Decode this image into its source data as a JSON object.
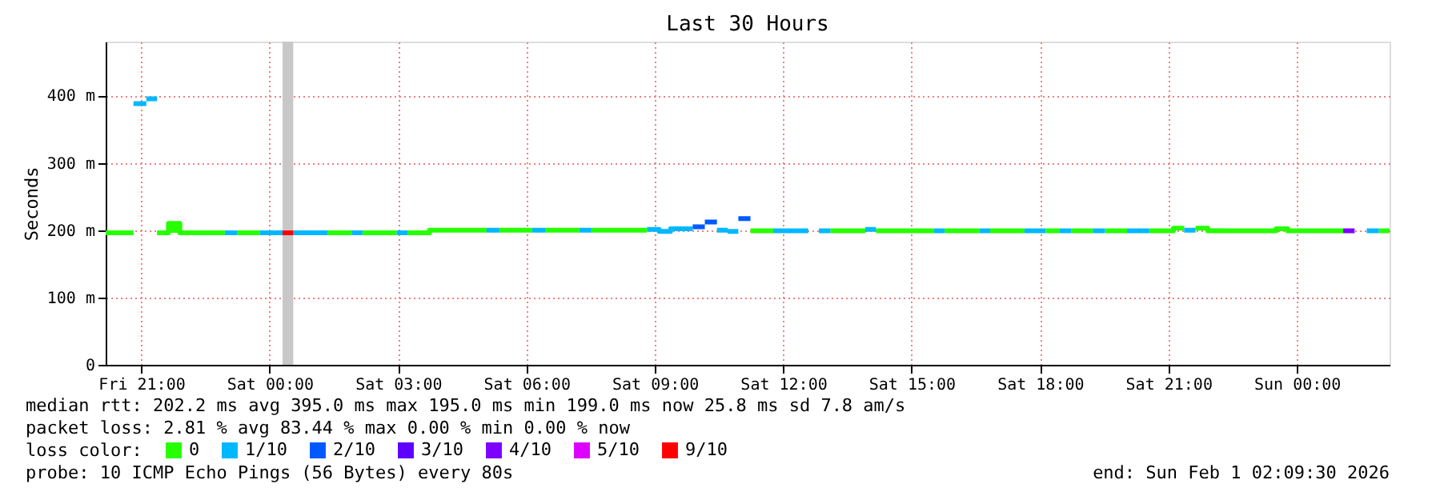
{
  "chart_data": {
    "type": "step",
    "title": "Last 30 Hours",
    "ylabel": "Seconds",
    "legend_title": "loss color:",
    "xlim": [
      "2026-01-30T20:10",
      "2026-02-01T02:10"
    ],
    "xticks": [
      {
        "value": "2026-01-30T21:00",
        "label": "Fri 21:00"
      },
      {
        "value": "2026-01-31T00:00",
        "label": "Sat 00:00"
      },
      {
        "value": "2026-01-31T03:00",
        "label": "Sat 03:00"
      },
      {
        "value": "2026-01-31T06:00",
        "label": "Sat 06:00"
      },
      {
        "value": "2026-01-31T09:00",
        "label": "Sat 09:00"
      },
      {
        "value": "2026-01-31T12:00",
        "label": "Sat 12:00"
      },
      {
        "value": "2026-01-31T15:00",
        "label": "Sat 15:00"
      },
      {
        "value": "2026-01-31T18:00",
        "label": "Sat 18:00"
      },
      {
        "value": "2026-01-31T21:00",
        "label": "Sat 21:00"
      },
      {
        "value": "2026-02-01T00:00",
        "label": "Sun 00:00"
      }
    ],
    "ylim": [
      0,
      480
    ],
    "yticks": [
      0,
      {
        "value": 100,
        "label": "100 m"
      },
      {
        "value": 200,
        "label": "200 m"
      },
      {
        "value": 300,
        "label": "300 m"
      },
      {
        "value": 400,
        "label": "400 m"
      }
    ],
    "grid": true,
    "legend": "bottom",
    "marker": "none",
    "line_style": "solid",
    "bands": [
      {
        "axis": "x",
        "from": "2026-01-31T00:18",
        "to": "2026-01-31T00:33",
        "color": "#c8c8c8"
      }
    ],
    "series": [
      {
        "name": "0",
        "color": "#26ff00",
        "x": [
          "2026-01-30T20:10",
          "2026-01-30T20:49",
          null,
          "2026-01-30T21:22",
          "2026-01-30T21:38",
          "2026-01-30T21:38",
          "2026-01-30T21:54",
          "2026-01-30T21:54",
          "2026-01-30T22:57",
          null,
          "2026-01-30T23:14",
          "2026-01-30T23:46",
          null,
          "2026-01-31T01:21",
          "2026-01-31T01:55",
          null,
          "2026-01-31T02:10",
          "2026-01-31T02:58",
          null,
          "2026-01-31T03:13",
          "2026-01-31T03:44",
          "2026-01-31T03:44",
          "2026-01-31T05:04",
          null,
          "2026-01-31T05:22",
          "2026-01-31T06:08",
          null,
          "2026-01-31T06:27",
          "2026-01-31T07:14",
          null,
          "2026-01-31T07:31",
          "2026-01-31T08:49",
          null,
          "2026-01-31T11:14",
          "2026-01-31T11:46",
          null,
          "2026-01-31T13:06",
          "2026-01-31T13:55",
          null,
          "2026-01-31T14:10",
          "2026-01-31T15:31",
          null,
          "2026-01-31T15:46",
          "2026-01-31T16:35",
          null,
          "2026-01-31T16:50",
          "2026-01-31T17:38",
          null,
          "2026-01-31T18:08",
          "2026-01-31T18:27",
          null,
          "2026-01-31T18:44",
          "2026-01-31T19:14",
          null,
          "2026-01-31T19:31",
          "2026-01-31T20:02",
          null,
          "2026-01-31T20:33",
          "2026-01-31T21:07",
          "2026-01-31T21:07",
          "2026-01-31T21:22",
          null,
          "2026-01-31T21:38",
          "2026-01-31T21:55",
          "2026-01-31T21:55",
          "2026-01-31T23:31",
          "2026-01-31T23:31",
          "2026-01-31T23:47",
          "2026-01-31T23:47",
          "2026-02-01T01:05",
          null,
          "2026-02-01T01:55",
          "2026-02-01T02:10"
        ],
        "values": [
          196,
          196,
          null,
          196,
          196,
          210,
          210,
          196,
          196,
          null,
          196,
          196,
          null,
          196,
          196,
          null,
          196,
          196,
          null,
          196,
          196,
          200,
          200,
          null,
          200,
          200,
          null,
          200,
          200,
          null,
          200,
          200,
          null,
          199,
          199,
          null,
          199,
          199,
          null,
          199,
          199,
          null,
          199,
          199,
          null,
          199,
          199,
          null,
          199,
          199,
          null,
          199,
          199,
          null,
          199,
          199,
          null,
          199,
          199,
          203,
          203,
          null,
          203,
          203,
          199,
          199,
          202,
          202,
          199,
          199,
          null,
          199,
          199
        ]
      },
      {
        "name": "1/10",
        "color": "#00b8ff",
        "x": [
          "2026-01-30T20:49",
          "2026-01-30T21:07",
          null,
          "2026-01-30T21:07",
          "2026-01-30T21:22",
          null,
          "2026-01-30T22:57",
          "2026-01-30T23:14",
          null,
          "2026-01-30T23:46",
          "2026-01-31T00:18",
          null,
          "2026-01-31T00:33",
          "2026-01-31T01:21",
          null,
          "2026-01-31T01:55",
          "2026-01-31T02:10",
          null,
          "2026-01-31T02:58",
          "2026-01-31T03:13",
          null,
          "2026-01-31T05:04",
          "2026-01-31T05:22",
          null,
          "2026-01-31T06:08",
          "2026-01-31T06:27",
          null,
          "2026-01-31T07:14",
          "2026-01-31T07:31",
          null,
          "2026-01-31T08:49",
          "2026-01-31T09:06",
          "2026-01-31T09:06",
          "2026-01-31T09:22",
          "2026-01-31T09:22",
          "2026-01-31T09:53",
          null,
          "2026-01-31T10:27",
          "2026-01-31T10:42",
          null,
          "2026-01-31T10:42",
          "2026-01-31T10:57",
          null,
          "2026-01-31T11:46",
          "2026-01-31T12:35",
          null,
          "2026-01-31T12:50",
          "2026-01-31T13:06",
          null,
          "2026-01-31T13:55",
          "2026-01-31T14:10",
          null,
          "2026-01-31T15:31",
          "2026-01-31T15:46",
          null,
          "2026-01-31T16:35",
          "2026-01-31T16:50",
          null,
          "2026-01-31T17:38",
          "2026-01-31T18:08",
          null,
          "2026-01-31T18:27",
          "2026-01-31T18:44",
          null,
          "2026-01-31T19:14",
          "2026-01-31T19:31",
          null,
          "2026-01-31T20:02",
          "2026-01-31T20:33",
          null,
          "2026-01-31T21:22",
          "2026-01-31T21:38",
          null,
          "2026-02-01T01:38",
          "2026-02-01T01:55"
        ],
        "values": [
          388,
          388,
          null,
          395,
          395,
          null,
          196,
          196,
          null,
          196,
          196,
          null,
          196,
          196,
          null,
          196,
          196,
          null,
          196,
          196,
          null,
          200,
          200,
          null,
          200,
          200,
          null,
          200,
          200,
          null,
          201,
          201,
          198,
          198,
          202,
          202,
          null,
          200,
          200,
          null,
          198,
          198,
          null,
          199,
          199,
          null,
          199,
          199,
          null,
          201,
          201,
          null,
          199,
          199,
          null,
          199,
          199,
          null,
          199,
          199,
          null,
          199,
          199,
          null,
          199,
          199,
          null,
          199,
          199,
          null,
          200,
          200,
          null,
          199,
          199
        ]
      },
      {
        "name": "2/10",
        "color": "#0059ff",
        "x": [
          "2026-01-31T09:53",
          "2026-01-31T10:10",
          null,
          "2026-01-31T10:10",
          "2026-01-31T10:27",
          null,
          "2026-01-31T10:57",
          "2026-01-31T11:14"
        ],
        "values": [
          205,
          205,
          null,
          212,
          212,
          null,
          217,
          217
        ]
      },
      {
        "name": "3/10",
        "color": "#5e00ff"
      },
      {
        "name": "4/10",
        "color": "#7e00ff",
        "x": [
          "2026-02-01T01:05",
          "2026-02-01T01:21"
        ],
        "values": [
          199,
          199
        ]
      },
      {
        "name": "5/10",
        "color": "#dd00ff"
      },
      {
        "name": "9/10",
        "color": "#ff0000",
        "x": [
          "2026-01-31T00:18",
          "2026-01-31T00:33"
        ],
        "values": [
          196,
          196
        ]
      }
    ],
    "annotations": [
      "median rtt:  202.2 ms avg  395.0 ms max  195.0 ms min  199.0 ms now  25.8 ms sd  7.8   am/s",
      "packet loss: 2.81 % avg  83.44 % max  0.00 % min  0.00 % now",
      "probe:       10 ICMP Echo Pings (56 Bytes) every 80s",
      "end: Sun Feb  1 02:09:30 2026"
    ]
  }
}
